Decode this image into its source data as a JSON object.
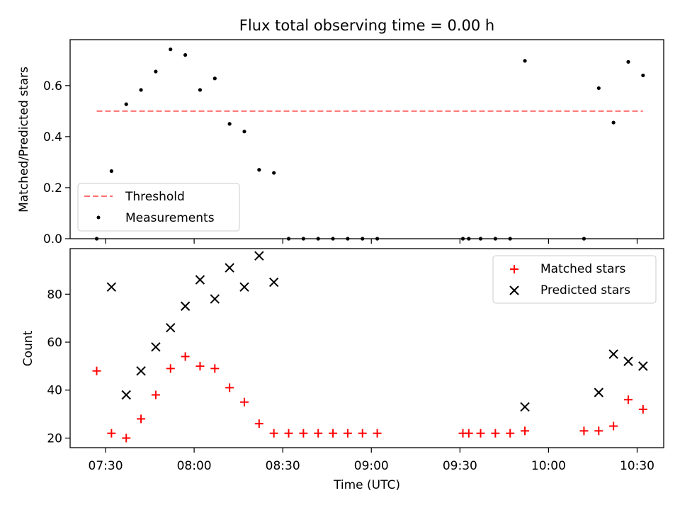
{
  "chart_data": [
    {
      "type": "scatter",
      "title": "Flux total observing time = 0.00 h",
      "ylabel": "Matched/Predicted stars",
      "xlabel": "",
      "ylim": [
        0,
        0.78
      ],
      "yticks": [
        "0.0",
        "0.2",
        "0.4",
        "0.6"
      ],
      "xlim": [
        "07:18",
        "10:39"
      ],
      "grid": false,
      "legend_position": "lower-left",
      "threshold": {
        "name": "Threshold",
        "value": 0.5,
        "x": [
          "07:27",
          "10:32"
        ],
        "color": "#ff7070"
      },
      "series": [
        {
          "name": "Measurements",
          "color": "#000000",
          "points": [
            [
              "07:27",
              0.0
            ],
            [
              "07:32",
              0.265
            ],
            [
              "07:37",
              0.527
            ],
            [
              "07:42",
              0.583
            ],
            [
              "07:47",
              0.655
            ],
            [
              "07:52",
              0.742
            ],
            [
              "07:57",
              0.72
            ],
            [
              "08:02",
              0.583
            ],
            [
              "08:07",
              0.628
            ],
            [
              "08:12",
              0.45
            ],
            [
              "08:17",
              0.42
            ],
            [
              "08:22",
              0.27
            ],
            [
              "08:27",
              0.258
            ],
            [
              "08:32",
              0.0
            ],
            [
              "08:37",
              0.0
            ],
            [
              "08:42",
              0.0
            ],
            [
              "08:47",
              0.0
            ],
            [
              "08:52",
              0.0
            ],
            [
              "08:57",
              0.0
            ],
            [
              "09:02",
              0.0
            ],
            [
              "09:31",
              0.0
            ],
            [
              "09:33",
              0.0
            ],
            [
              "09:37",
              0.0
            ],
            [
              "09:42",
              0.0
            ],
            [
              "09:47",
              0.0
            ],
            [
              "09:52",
              0.697
            ],
            [
              "10:12",
              0.0
            ],
            [
              "10:17",
              0.59
            ],
            [
              "10:22",
              0.455
            ],
            [
              "10:27",
              0.693
            ],
            [
              "10:32",
              0.64
            ]
          ]
        }
      ]
    },
    {
      "type": "scatter",
      "title": "",
      "xlabel": "Time (UTC)",
      "ylabel": "Count",
      "ylim": [
        16,
        99
      ],
      "yticks": [
        "20",
        "40",
        "60",
        "80"
      ],
      "xlim": [
        "07:18",
        "10:39"
      ],
      "xticks": [
        "07:30",
        "08:00",
        "08:30",
        "09:00",
        "09:30",
        "10:00",
        "10:30"
      ],
      "grid": false,
      "legend_position": "top-right",
      "series": [
        {
          "name": "Matched stars",
          "marker": "plus",
          "color": "#ff0000",
          "points": [
            [
              "07:27",
              48
            ],
            [
              "07:32",
              22
            ],
            [
              "07:37",
              20
            ],
            [
              "07:42",
              28
            ],
            [
              "07:47",
              38
            ],
            [
              "07:52",
              49
            ],
            [
              "07:57",
              54
            ],
            [
              "08:02",
              50
            ],
            [
              "08:07",
              49
            ],
            [
              "08:12",
              41
            ],
            [
              "08:17",
              35
            ],
            [
              "08:22",
              26
            ],
            [
              "08:27",
              22
            ],
            [
              "08:32",
              22
            ],
            [
              "08:37",
              22
            ],
            [
              "08:42",
              22
            ],
            [
              "08:47",
              22
            ],
            [
              "08:52",
              22
            ],
            [
              "08:57",
              22
            ],
            [
              "09:02",
              22
            ],
            [
              "09:31",
              22
            ],
            [
              "09:33",
              22
            ],
            [
              "09:37",
              22
            ],
            [
              "09:42",
              22
            ],
            [
              "09:47",
              22
            ],
            [
              "09:52",
              23
            ],
            [
              "10:12",
              23
            ],
            [
              "10:17",
              23
            ],
            [
              "10:22",
              25
            ],
            [
              "10:27",
              36
            ],
            [
              "10:32",
              32
            ]
          ]
        },
        {
          "name": "Predicted stars",
          "marker": "x",
          "color": "#000000",
          "points": [
            [
              "07:32",
              83
            ],
            [
              "07:37",
              38
            ],
            [
              "07:42",
              48
            ],
            [
              "07:47",
              58
            ],
            [
              "07:52",
              66
            ],
            [
              "07:57",
              75
            ],
            [
              "08:02",
              86
            ],
            [
              "08:07",
              78
            ],
            [
              "08:12",
              91
            ],
            [
              "08:17",
              83
            ],
            [
              "08:22",
              96
            ],
            [
              "08:27",
              85
            ],
            [
              "09:52",
              33
            ],
            [
              "10:17",
              39
            ],
            [
              "10:22",
              55
            ],
            [
              "10:27",
              52
            ],
            [
              "10:32",
              50
            ]
          ]
        }
      ]
    }
  ]
}
